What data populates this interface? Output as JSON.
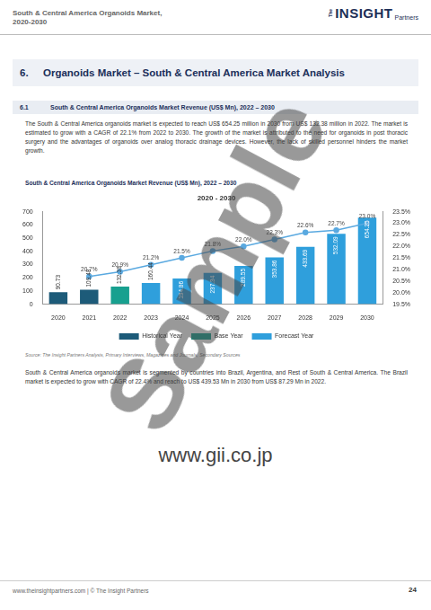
{
  "header": {
    "title": "South & Central America Organoids Market, 2020-2030",
    "logo": {
      "small": "The",
      "main": "INSIGHT",
      "sub": "Partners"
    }
  },
  "section": {
    "number": "6.",
    "title": "Organoids Market – South & Central America Market Analysis"
  },
  "subsection": {
    "number": "6.1",
    "title": "South & Central America Organoids Market Revenue (US$ Mn), 2022 – 2030"
  },
  "paragraphs": [
    "The South & Central America organoids market is expected to reach US$ 654.25 million in 2030 from US$ 132.38 million in 2022. The market is estimated to grow with a CAGR of 22.1% from 2022 to 2030. The growth of the market is attributed to the need for organoids in post thoracic surgery and the advantages of organoids over analog thoracic drainage devices. However, the lack of skilled personnel hinders the market growth."
  ],
  "figure_caption": "South & Central America Organoids Market Revenue (US$ Mn), 2022 – 2030",
  "chart_data": {
    "type": "bar",
    "title": "2020 - 2030",
    "categories": [
      "2020",
      "2021",
      "2022",
      "2023",
      "2024",
      "2025",
      "2026",
      "2027",
      "2028",
      "2029",
      "2030"
    ],
    "series": [
      {
        "name": "Historical Year",
        "color": "#1d5b79",
        "values": [
          90.73,
          109.48,
          null,
          null,
          null,
          null,
          null,
          null,
          null,
          null,
          null
        ]
      },
      {
        "name": "Base Year",
        "color": "#17a08f",
        "values": [
          null,
          null,
          132.38,
          null,
          null,
          null,
          null,
          null,
          null,
          null,
          null
        ]
      },
      {
        "name": "Forecast Year",
        "color": "#2f9fdc",
        "values": [
          null,
          null,
          null,
          160.44,
          194.86,
          237.34,
          289.55,
          353.86,
          433.69,
          532.09,
          654.25
        ]
      },
      {
        "type": "line",
        "axis": "y2",
        "color": "#5aa9e0",
        "marker": "circle",
        "values": [
          null,
          20.7,
          20.9,
          21.2,
          21.5,
          21.8,
          22.0,
          22.3,
          22.6,
          22.7,
          23.0
        ],
        "value_labels": [
          null,
          "20.7%",
          "20.9%",
          "21.2%",
          "21.5%",
          "21.8%",
          "22.0%",
          "22.3%",
          "22.6%",
          "22.7%",
          "23.0%"
        ]
      }
    ],
    "ylim": [
      0,
      700
    ],
    "yticks": [
      0,
      100,
      200,
      300,
      400,
      500,
      600,
      700
    ],
    "y2lim": [
      19.5,
      23.5
    ],
    "y2ticks": [
      {
        "value": 19.5,
        "label": "19.5%"
      },
      {
        "value": 20.0,
        "label": "20.0%"
      },
      {
        "value": 20.5,
        "label": "20.5%"
      },
      {
        "value": 21.0,
        "label": "21.0%"
      },
      {
        "value": 21.5,
        "label": "21.5%"
      },
      {
        "value": 22.0,
        "label": "22.0%"
      },
      {
        "value": 22.5,
        "label": "22.5%"
      },
      {
        "value": 23.0,
        "label": "23.0%"
      },
      {
        "value": 23.5,
        "label": "23.5%"
      }
    ],
    "stacked": true,
    "data_labels": true,
    "legend": "bottom",
    "grid": false
  },
  "source": "Source: The Insight Partners Analysis, Primary Interviews, Magazines and Journals, Secondary Sources",
  "paragraphs_after": [
    "South & Central America organoids market is segmented by countries into Brazil, Argentina, and Rest of South & Central America. The Brazil market is expected to grow with CAGR of 22.4% and reach to US$ 439.53 Mn in 2030 from US$ 87.29 Mn in 2022."
  ],
  "watermarks": [
    "Sample",
    "www.gii.co.jp"
  ],
  "footer": {
    "website": "www.theinsightpartners.com | © The Insight Partners",
    "page": "24"
  }
}
